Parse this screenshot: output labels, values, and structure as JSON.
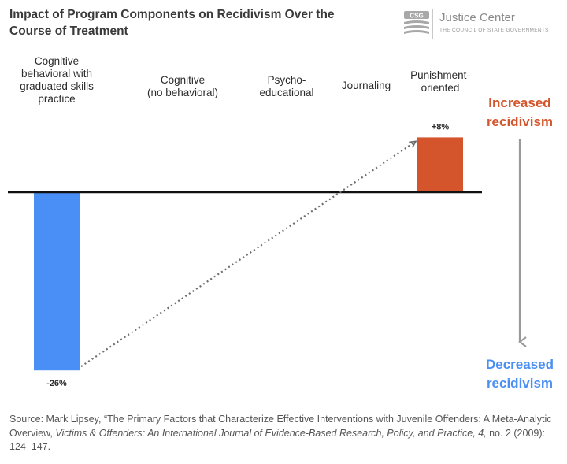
{
  "header": {
    "title": "Impact of Program Components on Recidivism Over the Course of Treatment",
    "logo": {
      "badge": "CSG",
      "name": "Justice Center",
      "subtitle": "THE COUNCIL OF STATE GOVERNMENTS"
    }
  },
  "chart_data": {
    "type": "bar",
    "categories": [
      [
        "Cognitive",
        "behavioral with",
        "graduated skills",
        "practice"
      ],
      [
        "Cognitive",
        "(no behavioral)"
      ],
      [
        "Psycho-",
        "educational"
      ],
      [
        "Journaling"
      ],
      [
        "Punishment-",
        "oriented"
      ]
    ],
    "values": [
      -26,
      null,
      null,
      null,
      8
    ],
    "data_labels": [
      "-26%",
      "",
      "",
      "",
      "+8%"
    ],
    "ylim": [
      -26,
      8
    ],
    "bar_colors": [
      "#4a8ff5",
      null,
      null,
      null,
      "#d4552b"
    ],
    "annotations": {
      "increased": [
        "Increased",
        "recidivism"
      ],
      "decreased": [
        "Decreased",
        "recidivism"
      ],
      "increased_color": "#d4552b",
      "decreased_color": "#4a8ff5",
      "arrow_color": "#9a9a9a"
    },
    "trend_line": "dotted",
    "legend": "none",
    "grid": false
  },
  "footer": {
    "source_prefix": "Source: Mark Lipsey, “The Primary Factors that Characterize Effective Interventions with Juvenile Offenders: A Meta-Analytic Overview, ",
    "source_journal": "Victims & Offenders: An International Journal of Evidence-Based Research, Policy, and Practice, 4,",
    "source_suffix": " no. 2 (2009): 124–147."
  }
}
